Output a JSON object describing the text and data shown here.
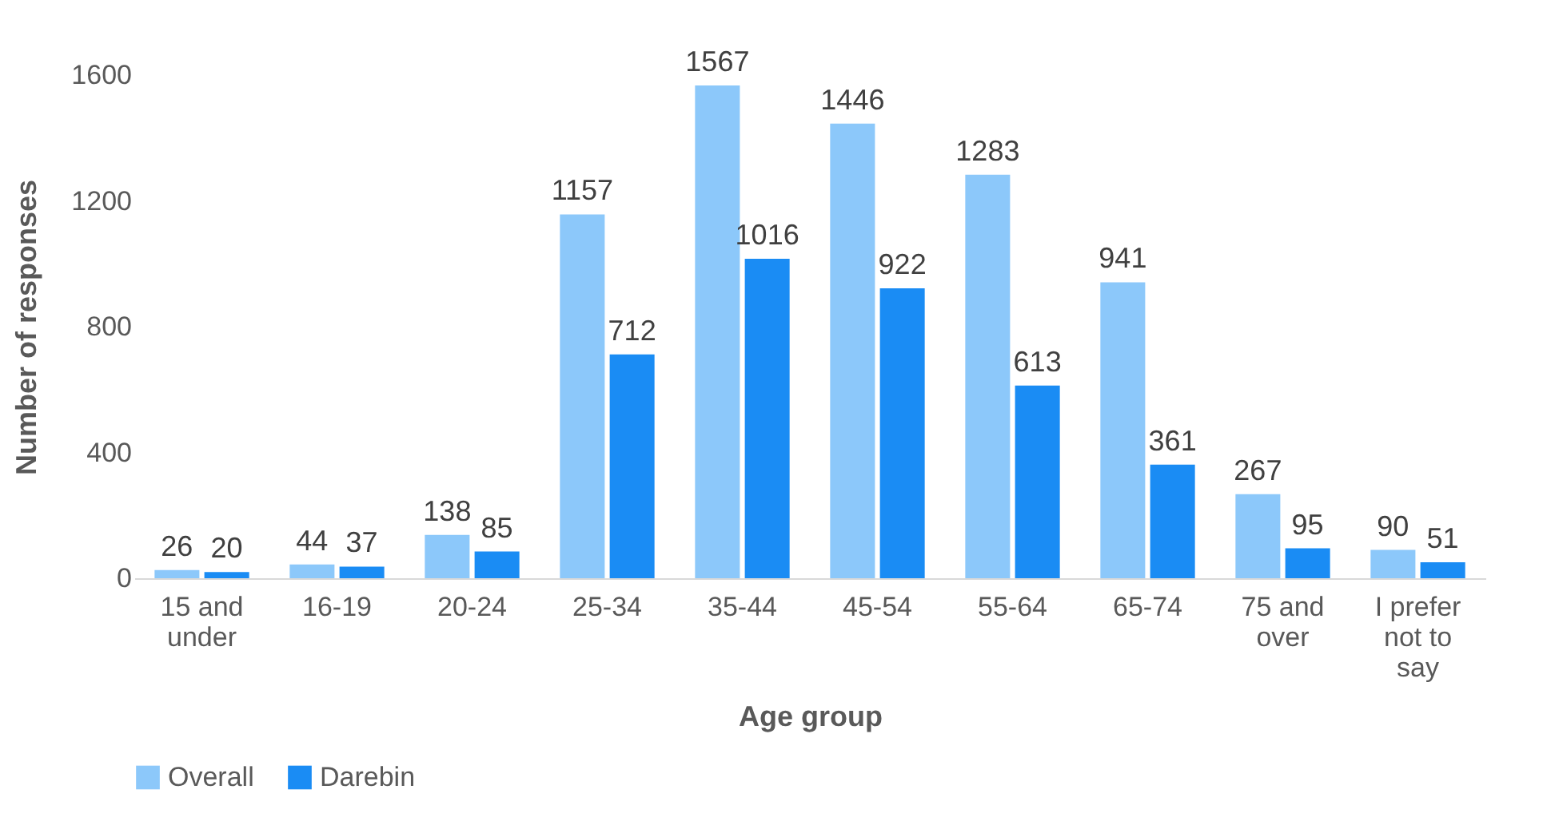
{
  "chart_data": {
    "type": "bar",
    "xlabel": "Age group",
    "ylabel": "Number of responses",
    "categories": [
      "15 and under",
      "16-19",
      "20-24",
      "25-34",
      "35-44",
      "45-54",
      "55-64",
      "65-74",
      "75 and over",
      "I prefer not to say"
    ],
    "series": [
      {
        "name": "Overall",
        "color": "#8cc8fa",
        "values": [
          26,
          44,
          138,
          1157,
          1567,
          1446,
          1283,
          941,
          267,
          90
        ]
      },
      {
        "name": "Darebin",
        "color": "#1a8cf4",
        "values": [
          20,
          37,
          85,
          712,
          1016,
          922,
          613,
          361,
          95,
          51
        ]
      }
    ],
    "ylim": [
      0,
      1600
    ],
    "yticks": [
      0,
      400,
      800,
      1200,
      1600
    ],
    "grid": false,
    "legend": "bottom",
    "data_labels": true
  }
}
